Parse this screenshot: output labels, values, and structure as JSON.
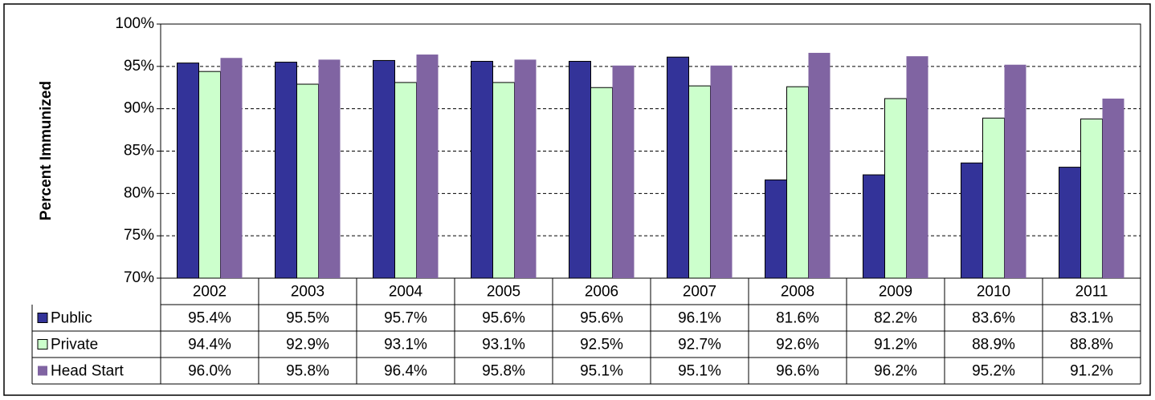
{
  "chart_data": {
    "type": "bar",
    "y_label": "Percent Immunized",
    "categories": [
      "2002",
      "2003",
      "2004",
      "2005",
      "2006",
      "2007",
      "2008",
      "2009",
      "2010",
      "2011"
    ],
    "series": [
      {
        "name": "Public",
        "color": "#333399",
        "values": [
          95.4,
          95.5,
          95.7,
          95.6,
          95.6,
          96.1,
          81.6,
          82.2,
          83.6,
          83.1
        ],
        "value_labels": [
          "95.4%",
          "95.5%",
          "95.7%",
          "95.6%",
          "95.6%",
          "96.1%",
          "81.6%",
          "82.2%",
          "83.6%",
          "83.1%"
        ]
      },
      {
        "name": "Private",
        "color": "#ccffcc",
        "values": [
          94.4,
          92.9,
          93.1,
          93.1,
          92.5,
          92.7,
          92.6,
          91.2,
          88.9,
          88.8
        ],
        "value_labels": [
          "94.4%",
          "92.9%",
          "93.1%",
          "93.1%",
          "92.5%",
          "92.7%",
          "92.6%",
          "91.2%",
          "88.9%",
          "88.8%"
        ]
      },
      {
        "name": "Head Start",
        "color": "#8064a2",
        "values": [
          96.0,
          95.8,
          96.4,
          95.8,
          95.1,
          95.1,
          96.6,
          96.2,
          95.2,
          91.2
        ],
        "value_labels": [
          "96.0%",
          "95.8%",
          "96.4%",
          "95.8%",
          "95.1%",
          "95.1%",
          "96.6%",
          "96.2%",
          "95.2%",
          "91.2%"
        ]
      }
    ],
    "ylim": [
      70,
      100
    ],
    "yticks": [
      {
        "value": 70,
        "label": "70%"
      },
      {
        "value": 75,
        "label": "75%"
      },
      {
        "value": 80,
        "label": "80%"
      },
      {
        "value": 85,
        "label": "85%"
      },
      {
        "value": 90,
        "label": "90%"
      },
      {
        "value": 95,
        "label": "95%"
      },
      {
        "value": 100,
        "label": "100%"
      }
    ],
    "grid": true
  }
}
